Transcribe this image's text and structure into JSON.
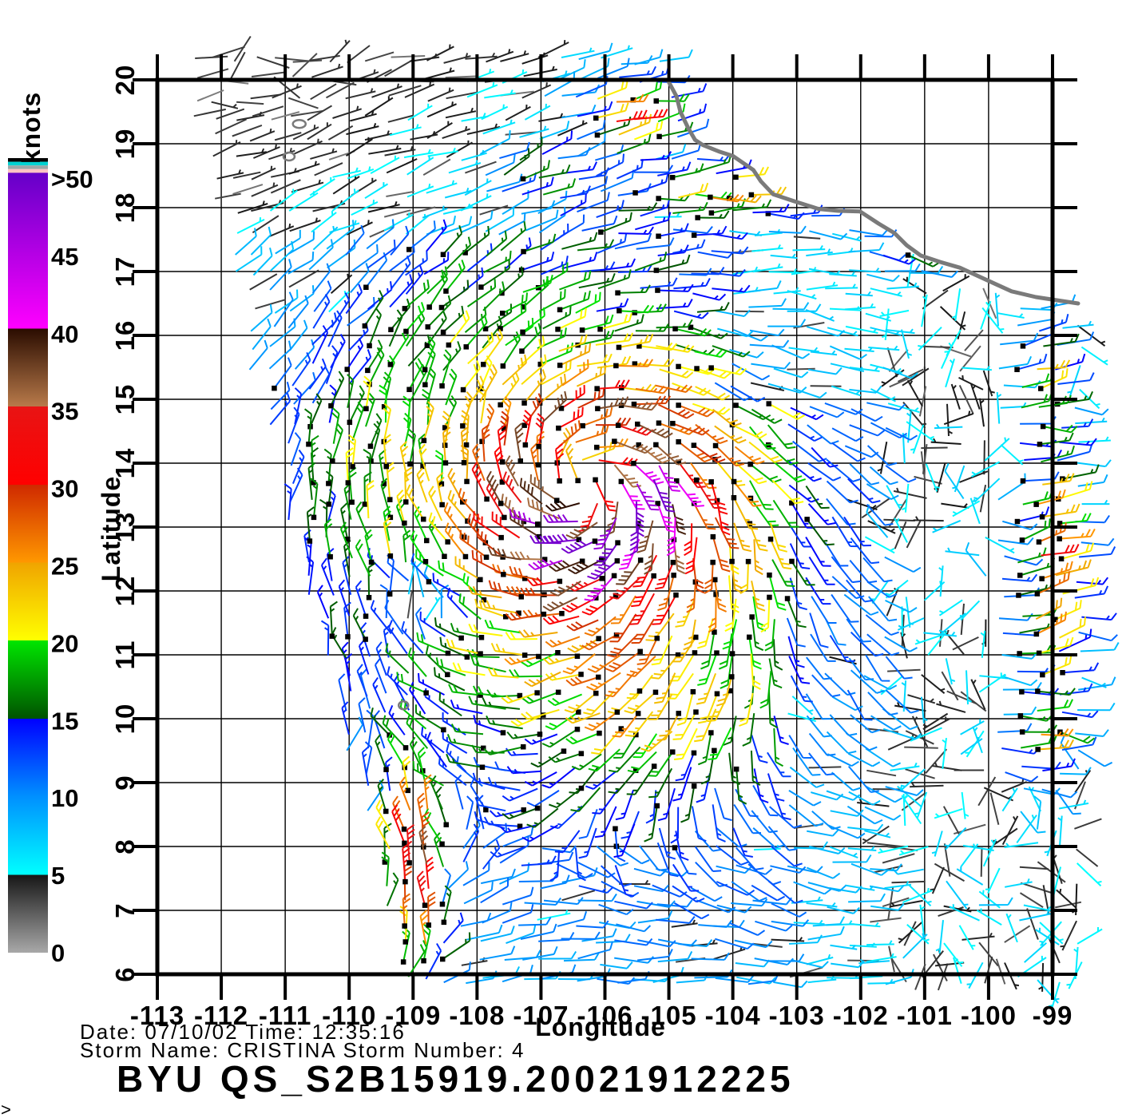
{
  "footer": {
    "date_time": "Date:  07/10/02    Time:  12:35:16",
    "storm_line": "Storm  Name:  CRISTINA    Storm  Number:  4",
    "product_id": "BYU  QS_S2B15919.20021912225",
    "corner_glyph": ">"
  },
  "chart_data": {
    "type": "vector-field",
    "description": "Scatterometer ocean wind barb map around Tropical Storm CRISTINA, winds colored by speed in knots",
    "x_axis": {
      "label": "Longitude",
      "min": -113,
      "max": -99,
      "ticks": [
        "-113",
        "-112",
        "-111",
        "-110",
        "-109",
        "-108",
        "-107",
        "-106",
        "-105",
        "-104",
        "-103",
        "-102",
        "-101",
        "-100",
        "-99"
      ],
      "tick_values": [
        -113,
        -112,
        -111,
        -110,
        -109,
        -108,
        -107,
        -106,
        -105,
        -104,
        -103,
        -102,
        -101,
        -100,
        -99
      ]
    },
    "y_axis": {
      "label": "Latitude",
      "min": 6,
      "max": 20,
      "ticks": [
        "6",
        "7",
        "8",
        "9",
        "10",
        "11",
        "12",
        "13",
        "14",
        "15",
        "16",
        "17",
        "18",
        "19",
        "20"
      ],
      "tick_values": [
        6,
        7,
        8,
        9,
        10,
        11,
        12,
        13,
        14,
        15,
        16,
        17,
        18,
        19,
        20
      ]
    },
    "colorbar": {
      "label": "knots",
      "tick_labels": [
        ">50",
        "45",
        "40",
        "35",
        "30",
        "25",
        "20",
        "15",
        "10",
        "5",
        "0"
      ],
      "tick_knots": [
        50,
        45,
        40,
        35,
        30,
        25,
        20,
        15,
        10,
        5,
        0
      ],
      "segments": [
        {
          "k0": 0,
          "k1": 5,
          "c0": "#a8a8a8",
          "c1": "#161616"
        },
        {
          "k0": 5,
          "k1": 10,
          "c0": "#00ffff",
          "c1": "#0090ff"
        },
        {
          "k0": 10,
          "k1": 15,
          "c0": "#0090ff",
          "c1": "#0000ff"
        },
        {
          "k0": 15,
          "k1": 20,
          "c0": "#005200",
          "c1": "#00e600"
        },
        {
          "k0": 20,
          "k1": 25,
          "c0": "#ffff00",
          "c1": "#f0a400"
        },
        {
          "k0": 25,
          "k1": 30,
          "c0": "#ff9800",
          "c1": "#cf2900"
        },
        {
          "k0": 30,
          "k1": 35,
          "c0": "#ff0000",
          "c1": "#e81414"
        },
        {
          "k0": 35,
          "k1": 40,
          "c0": "#b87a4a",
          "c1": "#2a0c00"
        },
        {
          "k0": 40,
          "k1": 50,
          "c0": "#ff00ff",
          "c1": "#6400c8"
        }
      ],
      "over_stripes_top_to_bottom": [
        "#000000",
        "#00d2d2",
        "#9aa8a8",
        "#ffc4c4"
      ]
    },
    "storm": {
      "name": "CRISTINA",
      "number": "4",
      "center": {
        "lon": -106.35,
        "lat": 13.75
      }
    },
    "coast_color": "#7a7a7a",
    "coastline": [
      [
        -105.02,
        20.0
      ],
      [
        -104.88,
        19.74
      ],
      [
        -104.82,
        19.5
      ],
      [
        -104.7,
        19.25
      ],
      [
        -104.59,
        19.06
      ],
      [
        -104.47,
        18.98
      ],
      [
        -104.22,
        18.88
      ],
      [
        -104.0,
        18.81
      ],
      [
        -103.68,
        18.59
      ],
      [
        -103.56,
        18.41
      ],
      [
        -103.37,
        18.21
      ],
      [
        -103.01,
        18.09
      ],
      [
        -102.66,
        17.98
      ],
      [
        -102.35,
        17.95
      ],
      [
        -102.01,
        17.94
      ],
      [
        -101.72,
        17.75
      ],
      [
        -101.47,
        17.6
      ],
      [
        -101.28,
        17.41
      ],
      [
        -101.06,
        17.25
      ],
      [
        -100.76,
        17.15
      ],
      [
        -100.45,
        17.06
      ],
      [
        -99.97,
        16.84
      ],
      [
        -99.64,
        16.69
      ],
      [
        -99.26,
        16.6
      ],
      [
        -98.6,
        16.5
      ]
    ],
    "islands": [
      {
        "lon": -110.78,
        "lat": 19.31,
        "rx": 8,
        "ry": 5
      },
      {
        "lon": -110.94,
        "lat": 18.8,
        "rx": 7,
        "ry": 5
      },
      {
        "lon": -109.15,
        "lat": 10.21,
        "rx": 6,
        "ry": 5
      }
    ],
    "field": {
      "step": 0.3,
      "lon0": -112.7,
      "lon1": -98.75,
      "lat0": 5.9,
      "lat1": 20.4,
      "swath_edge": {
        "lon_at_lat6": -109.15,
        "slope_per_lat": -0.245
      },
      "vortex": {
        "s_core": 24,
        "core_ramp": 16,
        "r_inner": 0.5,
        "s_peak": 42,
        "r_peak": 1.1,
        "decay": 0.85,
        "asym_amp": 0.22,
        "asym_dir_deg": -62,
        "inflow_deg": 20,
        "weight_r": 5.5,
        "weight_exp": 1.6
      },
      "arc": {
        "amp": 5,
        "r": 3.5,
        "sigma": 1.2,
        "dir_deg": 155
      },
      "background": {
        "u": -4.2,
        "v": -0.8
      },
      "dampers": [
        {
          "lat_gt": 15,
          "lon_gt": -104.3,
          "f": 0.55
        },
        {
          "lat_gt": 17.5,
          "lon_lt": -107,
          "f": 0.62
        },
        {
          "lon_gt": -103.3,
          "lon_lt": -101.6,
          "lat_lt": 15,
          "f": 0.78
        }
      ],
      "calm_zone": {
        "lon_gt": -101.6,
        "base": 3,
        "rand": 4.2
      },
      "calm_patches": [
        {
          "lon": -108.9,
          "lat": 11.7,
          "slon": 0.75,
          "slat": 0.55
        },
        {
          "lon": -111.3,
          "lat": 20.1,
          "slon": 1.5,
          "slat": 0.55
        }
      ],
      "patches": [
        {
          "name": "sw-streak",
          "lon": -108.95,
          "lat": 7.6,
          "slon": 0.42,
          "slat": 1.55,
          "amp": 25,
          "dir": [
            -0.18,
            -0.98
          ]
        },
        {
          "name": "right-edge",
          "lon": -99.15,
          "lat": 12.3,
          "slon": 0.5,
          "slat": 2.1,
          "amp": 24,
          "dir": [
            0.96,
            -0.27
          ]
        },
        {
          "name": "right-edge-n",
          "lon": -99.3,
          "lat": 15.4,
          "slon": 0.45,
          "slat": 0.9,
          "amp": 16,
          "dir": [
            0.96,
            -0.27
          ]
        },
        {
          "name": "coast-streak",
          "lon": -103.4,
          "lat": 18.25,
          "slon": 1.6,
          "slat": 0.42,
          "amp": 20
        },
        {
          "name": "coast-streak-e",
          "lon": -101.3,
          "lat": 17.35,
          "slon": 0.8,
          "slat": 0.35,
          "amp": 13
        },
        {
          "name": "top-cluster",
          "lon": -105.65,
          "lat": 19.45,
          "slon": 0.6,
          "slat": 0.48,
          "amp": 24
        },
        {
          "name": "top-cluster-w",
          "lon": -107.35,
          "lat": 18.55,
          "slon": 0.55,
          "slat": 0.4,
          "amp": 12
        },
        {
          "name": "se-cell",
          "lon": -99.35,
          "lat": 9.6,
          "slon": 0.5,
          "slat": 0.55,
          "amp": 15,
          "dir": [
            0.96,
            -0.2
          ]
        },
        {
          "name": "south-arc",
          "lon": -105.1,
          "lat": 10.3,
          "slon": 1.4,
          "slat": 0.65,
          "amp": 7
        }
      ],
      "hole": {
        "lon": -100.75,
        "lat": 12.55,
        "rlon": 0.55,
        "rlat": 0.45
      },
      "barb": {
        "len_base": 33,
        "len_rand": 10,
        "stroke": 2,
        "full_tick": 10.5,
        "half_tick": 5.5,
        "tick_space": 6,
        "tick_angle_deg": 58,
        "square": 6.5
      }
    }
  }
}
